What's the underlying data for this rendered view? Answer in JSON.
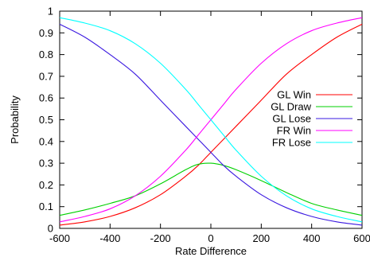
{
  "chart_data": {
    "type": "line",
    "title": "",
    "xlabel": "Rate Difference",
    "ylabel": "Probability",
    "xlim": [
      -600,
      600
    ],
    "ylim": [
      0,
      1
    ],
    "xticks": [
      -600,
      -400,
      -200,
      0,
      200,
      400,
      600
    ],
    "xtick_labels": [
      "-600",
      "-400",
      "-200",
      "0",
      "200",
      "400",
      "600"
    ],
    "yticks": [
      0,
      0.1,
      0.2,
      0.3,
      0.4,
      0.5,
      0.6,
      0.7,
      0.8,
      0.9,
      1
    ],
    "ytick_labels": [
      "0",
      "0.1",
      "0.2",
      "0.3",
      "0.4",
      "0.5",
      "0.6",
      "0.7",
      "0.8",
      "0.9",
      "1"
    ],
    "grid": false,
    "legend_position": "right",
    "x": [
      -600,
      -500,
      -400,
      -300,
      -200,
      -100,
      -50,
      0,
      50,
      100,
      200,
      300,
      400,
      500,
      600
    ],
    "series": [
      {
        "name": "GL Win",
        "color": "#ff0000",
        "values": [
          0.015,
          0.03,
          0.055,
          0.095,
          0.155,
          0.24,
          0.29,
          0.35,
          0.41,
          0.47,
          0.59,
          0.71,
          0.8,
          0.88,
          0.94
        ]
      },
      {
        "name": "GL Draw",
        "color": "#00d000",
        "values": [
          0.06,
          0.085,
          0.115,
          0.15,
          0.205,
          0.27,
          0.295,
          0.3,
          0.29,
          0.27,
          0.22,
          0.165,
          0.115,
          0.085,
          0.06
        ]
      },
      {
        "name": "GL Lose",
        "color": "#3a18e0",
        "values": [
          0.94,
          0.88,
          0.8,
          0.71,
          0.59,
          0.47,
          0.41,
          0.35,
          0.29,
          0.24,
          0.155,
          0.095,
          0.055,
          0.03,
          0.015
        ]
      },
      {
        "name": "FR Win",
        "color": "#ff00ff",
        "values": [
          0.03,
          0.055,
          0.09,
          0.15,
          0.24,
          0.36,
          0.43,
          0.5,
          0.57,
          0.64,
          0.76,
          0.85,
          0.91,
          0.945,
          0.97
        ]
      },
      {
        "name": "FR Lose",
        "color": "#00ffff",
        "values": [
          0.97,
          0.945,
          0.91,
          0.85,
          0.76,
          0.64,
          0.57,
          0.5,
          0.43,
          0.36,
          0.24,
          0.15,
          0.09,
          0.055,
          0.03
        ]
      }
    ]
  }
}
